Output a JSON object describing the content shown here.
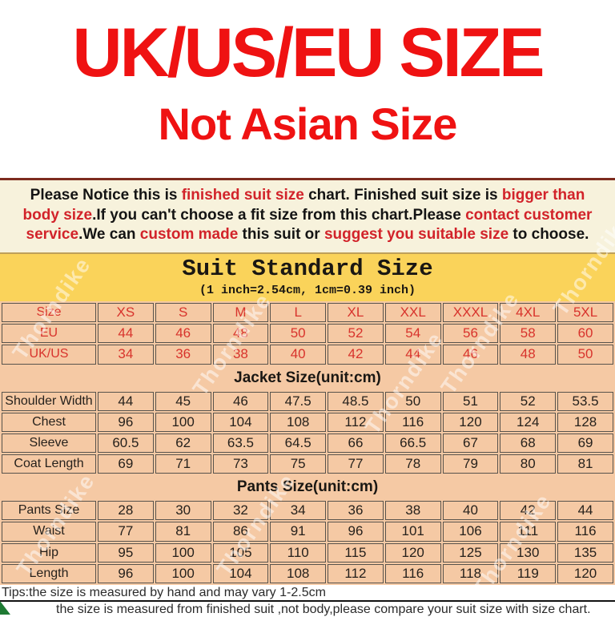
{
  "hero": {
    "title": "UK/US/EU SIZE",
    "subtitle": "Not Asian Size"
  },
  "notice": {
    "segments": [
      {
        "text": "Please Notice this is ",
        "color": "black"
      },
      {
        "text": "finished suit size",
        "color": "red"
      },
      {
        "text": " chart. Finished suit size is ",
        "color": "black"
      },
      {
        "text": "bigger than body size",
        "color": "red"
      },
      {
        "text": ".If you can't choose a fit size from this chart.Please ",
        "color": "black"
      },
      {
        "text": "contact customer service",
        "color": "red"
      },
      {
        "text": ".We can ",
        "color": "black"
      },
      {
        "text": "custom made",
        "color": "red"
      },
      {
        "text": " this suit or ",
        "color": "black"
      },
      {
        "text": "suggest you suitable size",
        "color": "red"
      },
      {
        "text": " to choose.",
        "color": "black"
      }
    ]
  },
  "chart_header": {
    "title": "Suit Standard Size",
    "subtitle": "(1 inch=2.54cm, 1cm=0.39 inch)"
  },
  "table": {
    "size_header": {
      "label": "Size",
      "values": [
        "XS",
        "S",
        "M",
        "L",
        "XL",
        "XXL",
        "XXXL",
        "4XL",
        "5XL"
      ]
    },
    "conversion_rows": [
      {
        "label": "EU",
        "values": [
          "44",
          "46",
          "48",
          "50",
          "52",
          "54",
          "56",
          "58",
          "60"
        ]
      },
      {
        "label": "UK/US",
        "values": [
          "34",
          "36",
          "38",
          "40",
          "42",
          "44",
          "46",
          "48",
          "50"
        ]
      }
    ],
    "jacket": {
      "title": "Jacket Size(unit:cm)",
      "rows": [
        {
          "label": "Shoulder Width",
          "values": [
            "44",
            "45",
            "46",
            "47.5",
            "48.5",
            "50",
            "51",
            "52",
            "53.5"
          ]
        },
        {
          "label": "Chest",
          "values": [
            "96",
            "100",
            "104",
            "108",
            "112",
            "116",
            "120",
            "124",
            "128"
          ]
        },
        {
          "label": "Sleeve",
          "values": [
            "60.5",
            "62",
            "63.5",
            "64.5",
            "66",
            "66.5",
            "67",
            "68",
            "69"
          ]
        },
        {
          "label": "Coat Length",
          "values": [
            "69",
            "71",
            "73",
            "75",
            "77",
            "78",
            "79",
            "80",
            "81"
          ]
        }
      ]
    },
    "pants": {
      "title": "Pants Size(unit:cm)",
      "rows": [
        {
          "label": "Pants Size",
          "values": [
            "28",
            "30",
            "32",
            "34",
            "36",
            "38",
            "40",
            "42",
            "44"
          ]
        },
        {
          "label": "Waist",
          "values": [
            "77",
            "81",
            "86",
            "91",
            "96",
            "101",
            "106",
            "111",
            "116"
          ]
        },
        {
          "label": "Hip",
          "values": [
            "95",
            "100",
            "105",
            "110",
            "115",
            "120",
            "125",
            "130",
            "135"
          ]
        },
        {
          "label": "Length",
          "values": [
            "96",
            "100",
            "104",
            "108",
            "112",
            "116",
            "118",
            "119",
            "120"
          ]
        }
      ]
    }
  },
  "tips": {
    "line1": "Tips:the size is measured by hand and may vary 1-2.5cm",
    "line2": "the size is measured from finished suit ,not body,please compare your suit size with size chart."
  },
  "watermark_text": "Thorndike",
  "colors": {
    "title_red": "#EF1212",
    "notice_red": "#D2232A",
    "notice_bg": "#F7F2DC",
    "band_yellow": "#FAD35A",
    "table_peach": "#F5C9A4",
    "table_red": "#D8332C"
  }
}
